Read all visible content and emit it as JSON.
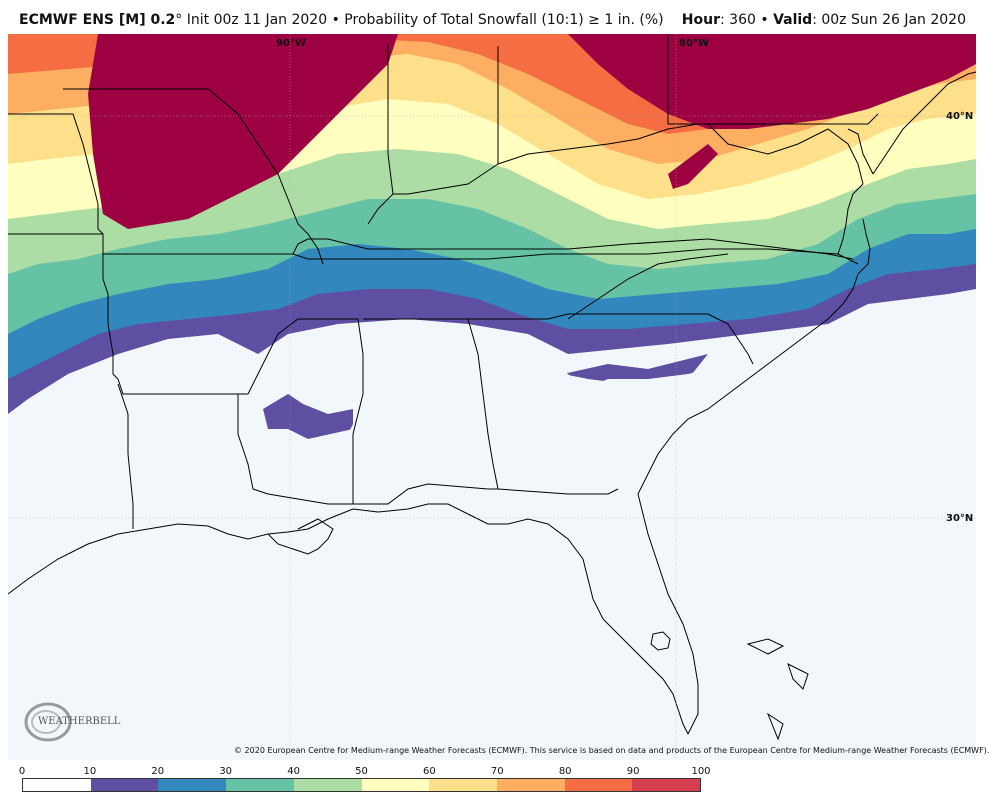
{
  "header": {
    "model": "ECMWF ENS [M] 0.2",
    "degree": "°",
    "init": " Init 00z 11 Jan 2020",
    "bullet": " • ",
    "product": "Probability of Total Snowfall (10:1) ≥ 1 in. (%)",
    "hour_label": "Hour",
    "hour_value": ": 360",
    "valid_label": "Valid",
    "valid_value": ": 00z Sun 26 Jan 2020"
  },
  "gridlines": {
    "lon_west": "90°W",
    "lon_east": "80°W",
    "lat_north": "40°N",
    "lat_south": "30°N"
  },
  "copyright": "© 2020 European Centre for Medium-range Weather Forecasts (ECMWF). This service is based on data and products of the European Centre for Medium-range Weather Forecasts (ECMWF).",
  "logo": {
    "text": "WEATHERBELL"
  },
  "legend": {
    "ticks": [
      "0",
      "10",
      "20",
      "30",
      "40",
      "50",
      "60",
      "70",
      "80",
      "90",
      "100"
    ],
    "colors": [
      "#ffffff",
      "#5e4fa2",
      "#3288bd",
      "#66c2a5",
      "#abdda4",
      "#ffffbf",
      "#fee08b",
      "#fdae61",
      "#f46d43",
      "#d53e4f",
      "#9e0142"
    ]
  }
}
